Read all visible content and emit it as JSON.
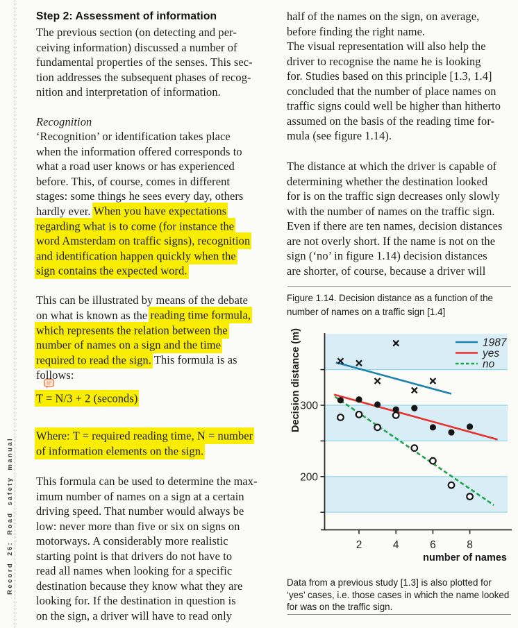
{
  "page": {
    "background": "#fbfbf8",
    "text_color": "#1d1d1d",
    "highlight_color": "#f9ee03"
  },
  "spine": {
    "label": "Record 26: Road safety manual"
  },
  "icons": {
    "comment_annotation": "comment-bubble-icon"
  },
  "left_column": {
    "blocks": [
      {
        "key": "heading",
        "style": "heading",
        "lines": [
          [
            {
              "t": "Step 2: Assessment of information"
            }
          ]
        ]
      },
      {
        "key": "p1",
        "lines": [
          [
            {
              "t": "The previous section (on detecting and per-"
            }
          ],
          [
            {
              "t": "ceiving information) discussed a number of"
            }
          ],
          [
            {
              "t": "fundamental properties of the senses. This sec-"
            }
          ],
          [
            {
              "t": "tion addresses the subsequent phases of recog-"
            }
          ],
          [
            {
              "t": "nition and interpretation of information."
            }
          ]
        ]
      },
      {
        "key": "recognition-subhead",
        "style": "subhead",
        "lines": [
          [
            {
              "t": "Recognition"
            }
          ]
        ]
      },
      {
        "key": "p2",
        "lines": [
          [
            {
              "t": "‘Recognition’ or identification takes place"
            }
          ],
          [
            {
              "t": "when the information offered corresponds to"
            }
          ],
          [
            {
              "t": "what a road user knows or has experienced"
            }
          ],
          [
            {
              "t": "before. This, of course, comes in different"
            }
          ],
          [
            {
              "t": "stages: some things he sees every day, others"
            }
          ],
          [
            {
              "t": "hardly ever. "
            },
            {
              "t": "When you have expectations",
              "h": true
            }
          ],
          [
            {
              "t": "regarding what is to come (for instance the",
              "h": true
            }
          ],
          [
            {
              "t": "word Amsterdam on traffic signs), recognition",
              "h": true
            }
          ],
          [
            {
              "t": "and identification happen quickly when the",
              "h": true
            }
          ],
          [
            {
              "t": "sign contains the expected word.",
              "h": true
            }
          ]
        ]
      },
      {
        "key": "p3",
        "lines": [
          [
            {
              "t": "This can be illustrated by means of the debate"
            }
          ],
          [
            {
              "t": "on what is known as the "
            },
            {
              "t": "reading time formula,",
              "h": true
            }
          ],
          [
            {
              "t": "which represents the relation between the",
              "h": true
            }
          ],
          [
            {
              "t": "number of names on a sign and the time",
              "h": true
            }
          ],
          [
            {
              "t": "required to read the sign.",
              "h": true
            },
            {
              "t": " This formula is as"
            }
          ],
          [
            {
              "t": "follows:"
            }
          ]
        ]
      },
      {
        "key": "formula",
        "lines": [
          [
            {
              "t": "T = N/3 + 2 (seconds)",
              "h": true
            }
          ]
        ]
      },
      {
        "key": "p-where",
        "lines": [
          [
            {
              "t": "Where: T = required reading time, N = number",
              "h": true
            }
          ],
          [
            {
              "t": "of information elements on the sign.",
              "h": true
            }
          ]
        ]
      },
      {
        "key": "p4",
        "lines": [
          [
            {
              "t": "This formula can be used to determine the max-"
            }
          ],
          [
            {
              "t": "imum number of names on a sign at a certain"
            }
          ],
          [
            {
              "t": "driving speed. That number would always be"
            }
          ],
          [
            {
              "t": "low: never more than five or six on signs on"
            }
          ],
          [
            {
              "t": "motorways. A considerably more realistic"
            }
          ],
          [
            {
              "t": "starting point is that drivers do not have to"
            }
          ],
          [
            {
              "t": "read all names when looking for a specific"
            }
          ],
          [
            {
              "t": "destination because they know what they are"
            }
          ],
          [
            {
              "t": "looking for. If the destination in question is"
            }
          ],
          [
            {
              "t": "on the sign, a driver will have to read only"
            }
          ]
        ]
      }
    ]
  },
  "right_column": {
    "blocks": [
      {
        "key": "rp1",
        "lines": [
          [
            {
              "t": "half of the names on the sign, on average,"
            }
          ],
          [
            {
              "t": "before finding the right name."
            }
          ],
          [
            {
              "t": "The visual representation will also help the"
            }
          ],
          [
            {
              "t": "driver to recognise the name he is looking"
            }
          ],
          [
            {
              "t": "for. Studies based on this principle [1.3, 1.4]"
            }
          ],
          [
            {
              "t": "concluded that the number of place names on"
            }
          ],
          [
            {
              "t": "traffic signs could well be higher than hitherto"
            }
          ],
          [
            {
              "t": "assumed on the basis of the reading time for-"
            }
          ],
          [
            {
              "t": "mula (see figure 1.14)."
            }
          ]
        ]
      },
      {
        "key": "rp2",
        "lines": [
          [
            {
              "t": "The distance at which the driver is capable of"
            }
          ],
          [
            {
              "t": "determining whether the destination looked"
            }
          ],
          [
            {
              "t": "for is on the traffic sign decreases only slowly"
            }
          ],
          [
            {
              "t": "with the number of names on the traffic sign."
            }
          ],
          [
            {
              "t": "Even if there are ten names, decision distances"
            }
          ],
          [
            {
              "t": "are not overly short. If the name is not on the"
            }
          ],
          [
            {
              "t": "sign (‘no’ in figure 1.14) decision distances"
            }
          ],
          [
            {
              "t": "are shorter, of course, because a driver will"
            }
          ]
        ]
      }
    ]
  },
  "figure": {
    "caption_lines": [
      "Figure 1.14.  Decision distance as a function of the",
      "number of names on a traffic sign [1.4]"
    ],
    "note_lines": [
      "Data from a previous study [1.3] is also plotted for",
      "‘yes’ cases, i.e. those cases in which the name looked",
      "for was on the traffic sign."
    ]
  },
  "chart_data": {
    "type": "scatter",
    "title": "",
    "xlabel": "number of names",
    "ylabel": "Decision distance (m)",
    "xlim": [
      0,
      10
    ],
    "ylim": [
      125,
      400
    ],
    "xticks": [
      2,
      4,
      6,
      8
    ],
    "ytick_labels": [
      300,
      200
    ],
    "gridlines_y": [
      350,
      300,
      250,
      200,
      150
    ],
    "bands_y": [
      [
        350,
        400
      ],
      [
        250,
        300
      ],
      [
        150,
        200
      ]
    ],
    "band_color": "#d8edf6",
    "grid_color": "#8fd8e9",
    "marker_color": "#161616",
    "legend_position": "top-right",
    "series": [
      {
        "name": "1987",
        "color": "#1a82ad",
        "line": "solid",
        "marker": "x",
        "points": [
          [
            1,
            362
          ],
          [
            2,
            359
          ],
          [
            3,
            334
          ],
          [
            4,
            387
          ],
          [
            5,
            321
          ],
          [
            6,
            334
          ]
        ],
        "trend": [
          [
            0.75,
            360
          ],
          [
            7.0,
            316
          ]
        ]
      },
      {
        "name": "yes",
        "color": "#e72f2b",
        "line": "solid",
        "marker": "dot",
        "points": [
          [
            1,
            307
          ],
          [
            2,
            308
          ],
          [
            3,
            301
          ],
          [
            4,
            294
          ],
          [
            5,
            296
          ],
          [
            6,
            269
          ],
          [
            7,
            262
          ],
          [
            8,
            270
          ]
        ],
        "trend": [
          [
            0.65,
            315
          ],
          [
            9.5,
            252
          ]
        ]
      },
      {
        "name": "no",
        "color": "#1ea24b",
        "line": "dashed",
        "marker": "circle",
        "points": [
          [
            1,
            283
          ],
          [
            2,
            287
          ],
          [
            3,
            269
          ],
          [
            4,
            286
          ],
          [
            5,
            240
          ],
          [
            6,
            222
          ],
          [
            7,
            188
          ],
          [
            8,
            172
          ]
        ],
        "trend": [
          [
            0.7,
            312
          ],
          [
            9.3,
            160
          ]
        ]
      }
    ]
  }
}
